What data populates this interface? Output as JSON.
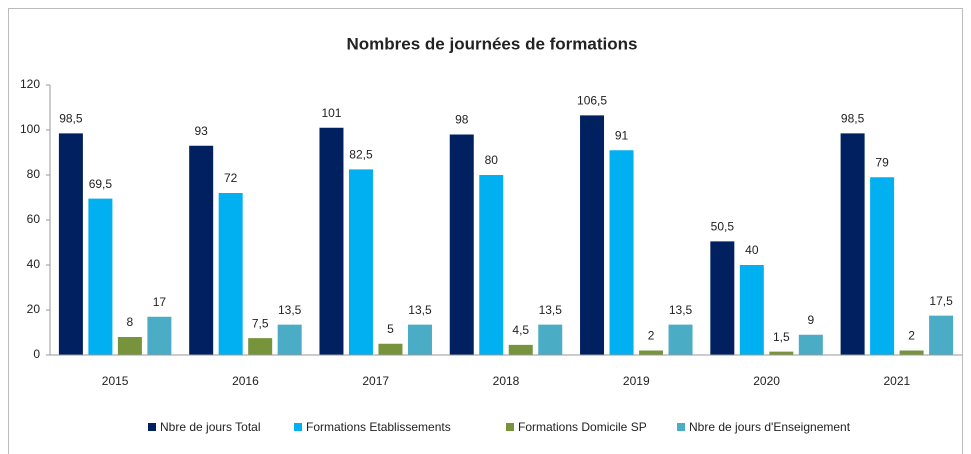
{
  "chart_data": {
    "type": "bar",
    "title": "Nombres de journées de formations",
    "categories": [
      "2015",
      "2016",
      "2017",
      "2018",
      "2019",
      "2020",
      "2021"
    ],
    "series": [
      {
        "name": "Nbre de jours Total",
        "color": "#002060",
        "values": [
          98.5,
          93,
          101,
          98,
          106.5,
          50.5,
          98.5
        ],
        "value_labels": [
          "98,5",
          "93",
          "101",
          "98",
          "106,5",
          "50,5",
          "98,5"
        ]
      },
      {
        "name": "Formations Etablissements",
        "color": "#00b0f0",
        "values": [
          69.5,
          72,
          82.5,
          80,
          91,
          40,
          79
        ],
        "value_labels": [
          "69,5",
          "72",
          "82,5",
          "80",
          "91",
          "40",
          "79"
        ]
      },
      {
        "name": "Formations Domicile SP",
        "color": "#77933c",
        "values": [
          8,
          7.5,
          5,
          4.5,
          2,
          1.5,
          2
        ],
        "value_labels": [
          "8",
          "7,5",
          "5",
          "4,5",
          "2",
          "1,5",
          "2"
        ]
      },
      {
        "name": "Nbre de jours d'Enseignement",
        "color": "#4bacc6",
        "values": [
          17,
          13.5,
          13.5,
          13.5,
          13.5,
          9,
          17.5
        ],
        "value_labels": [
          "17",
          "13,5",
          "13,5",
          "13,5",
          "13,5",
          "9",
          "17,5"
        ]
      }
    ],
    "ylim": [
      0,
      120
    ],
    "yticks": [
      0,
      20,
      40,
      60,
      80,
      100,
      120
    ],
    "grid": false,
    "legend": "bottom"
  }
}
